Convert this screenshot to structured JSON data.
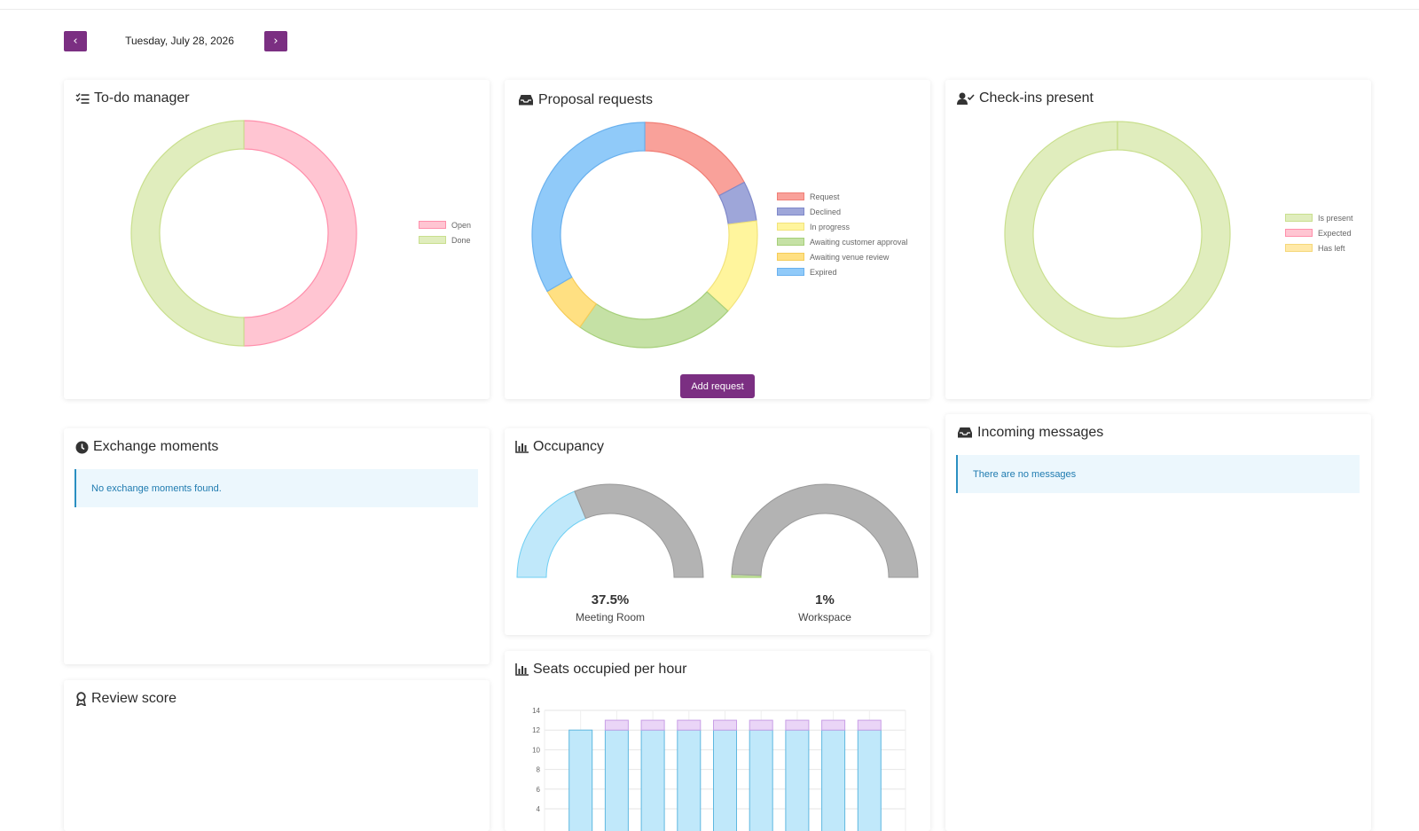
{
  "header": {
    "date": "Tuesday, July 28, 2026"
  },
  "colors": {
    "accent": "#7b2f82",
    "info_bg": "#ecf7fd",
    "info_text": "#1f7bb0"
  },
  "todo": {
    "title": "To-do manager",
    "icon": "list-check-icon"
  },
  "proposals": {
    "title": "Proposal requests",
    "icon": "inbox-icon",
    "add_label": "Add request"
  },
  "checkins": {
    "title": "Check-ins present",
    "icon": "user-check-icon"
  },
  "exchange": {
    "title": "Exchange moments",
    "icon": "clock-icon",
    "empty_text": "No exchange moments found."
  },
  "occupancy": {
    "title": "Occupancy",
    "icon": "bar-chart-icon",
    "gauges": [
      {
        "value": "37.5%",
        "label": "Meeting Room"
      },
      {
        "value": "1%",
        "label": "Workspace"
      }
    ]
  },
  "messages": {
    "title": "Incoming messages",
    "icon": "inbox-icon",
    "empty_text": "There are no messages"
  },
  "seats": {
    "title": "Seats occupied per hour",
    "icon": "bar-chart-icon"
  },
  "review": {
    "title": "Review score",
    "icon": "award-icon"
  },
  "chart_data": [
    {
      "type": "pie",
      "categories": [
        "Open",
        "Done"
      ],
      "values": [
        50,
        50
      ],
      "colors": [
        "#ffc5d2",
        "#e0edbd"
      ],
      "borders": [
        "#ff8fab",
        "#c9df8e"
      ],
      "legend": "right"
    },
    {
      "type": "pie",
      "categories": [
        "Request",
        "Declined",
        "In progress",
        "Awaiting customer approval",
        "Awaiting venue review",
        "Expired"
      ],
      "values": [
        15,
        5,
        12,
        20,
        6,
        29
      ],
      "colors": [
        "#f9a19a",
        "#9ea6d9",
        "#fff59d",
        "#c5e1a5",
        "#ffe082",
        "#90caf9"
      ],
      "borders": [
        "#f07f77",
        "#7f88c9",
        "#f2e37b",
        "#a6cf7a",
        "#f5cc59",
        "#6ab1ee"
      ],
      "legend": "right"
    },
    {
      "type": "pie",
      "categories": [
        "Is present",
        "Expected",
        "Has left"
      ],
      "values": [
        100,
        0,
        0
      ],
      "colors": [
        "#e0edbd",
        "#ffc5d2",
        "#ffe9a8"
      ],
      "borders": [
        "#c9df8e",
        "#ff8fab",
        "#f5d77a"
      ],
      "legend": "right"
    },
    {
      "type": "gauge",
      "categories": [
        "Meeting Room",
        "Workspace"
      ],
      "values": [
        37.5,
        1
      ],
      "colors": [
        "#c0e8fa",
        "#b3b3b3"
      ]
    },
    {
      "type": "bar",
      "stacked": true,
      "categories": [
        "",
        "",
        "",
        "",
        "",
        "",
        "",
        "",
        ""
      ],
      "series": [
        {
          "values": [
            12,
            12,
            12,
            12,
            12,
            12,
            12,
            12,
            12
          ],
          "color": "#c0e8fa"
        },
        {
          "values": [
            0,
            1,
            1,
            1,
            1,
            1,
            1,
            1,
            1
          ],
          "color": "#ead5f7"
        }
      ],
      "yticks": [
        4,
        6,
        8,
        10,
        12,
        14
      ],
      "ylim": [
        0,
        14
      ],
      "grid": true
    }
  ]
}
